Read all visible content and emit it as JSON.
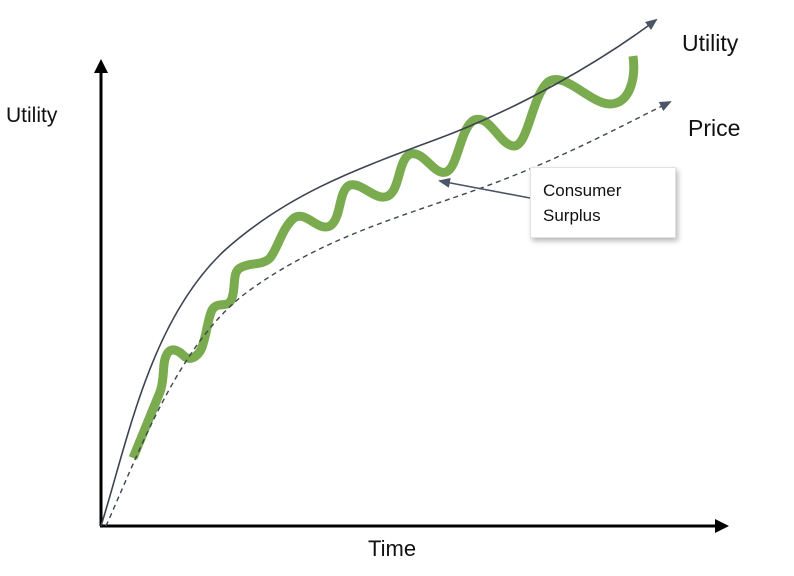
{
  "diagram": {
    "y_axis_label": "Utility",
    "x_axis_label": "Time",
    "curve_labels": {
      "utility": "Utility",
      "price": "Price"
    },
    "callout": {
      "text": "Consumer\nSurplus"
    },
    "colors": {
      "axes": "#000000",
      "utility_curve": "#3d4450",
      "price_curve": "#3d4450",
      "surplus_wave": "#7aab4e",
      "callout_arrow": "#4a5566"
    },
    "price_curve_style": "dashed"
  }
}
